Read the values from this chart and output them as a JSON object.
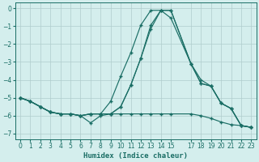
{
  "xlabel": "Humidex (Indice chaleur)",
  "bg_color": "#d4eeed",
  "grid_color": "#b0cccc",
  "line_color": "#1a6e65",
  "xlim": [
    -0.5,
    23.5
  ],
  "ylim": [
    -7.3,
    0.3
  ],
  "yticks": [
    0,
    -1,
    -2,
    -3,
    -4,
    -5,
    -6,
    -7
  ],
  "xticks": [
    0,
    1,
    2,
    3,
    4,
    5,
    6,
    7,
    8,
    9,
    10,
    11,
    12,
    13,
    14,
    15,
    17,
    18,
    19,
    20,
    21,
    22,
    23
  ],
  "lines": [
    {
      "x": [
        0,
        1,
        2,
        3,
        4,
        5,
        6,
        7,
        8,
        9,
        10,
        11,
        12,
        13,
        14,
        15,
        17,
        18,
        19,
        20,
        21,
        22,
        23
      ],
      "y": [
        -5.0,
        -5.2,
        -5.5,
        -5.8,
        -5.9,
        -5.9,
        -6.0,
        -6.4,
        -6.0,
        -5.9,
        -5.9,
        -5.9,
        -5.9,
        -5.9,
        -5.9,
        -5.9,
        -5.9,
        -6.0,
        -6.15,
        -6.35,
        -6.5,
        -6.55,
        -6.65
      ]
    },
    {
      "x": [
        0,
        1,
        2,
        3,
        4,
        5,
        6,
        7,
        8,
        9,
        10,
        11,
        12,
        13,
        14,
        15,
        17,
        18,
        19,
        20,
        21,
        22,
        23
      ],
      "y": [
        -5.0,
        -5.2,
        -5.5,
        -5.8,
        -5.9,
        -5.9,
        -6.0,
        -5.9,
        -5.9,
        -5.9,
        -5.5,
        -4.3,
        -2.8,
        -1.15,
        -0.12,
        -0.12,
        -3.1,
        -4.2,
        -4.35,
        -5.3,
        -5.6,
        -6.55,
        -6.65
      ]
    },
    {
      "x": [
        0,
        1,
        2,
        3,
        4,
        5,
        6,
        7,
        8,
        9,
        10,
        11,
        12,
        13,
        14,
        15,
        17,
        18,
        19,
        20,
        21,
        22,
        23
      ],
      "y": [
        -5.0,
        -5.2,
        -5.5,
        -5.8,
        -5.9,
        -5.9,
        -6.0,
        -5.9,
        -5.9,
        -5.2,
        -3.8,
        -2.5,
        -0.95,
        -0.12,
        -0.12,
        -0.55,
        -3.1,
        -4.0,
        -4.35,
        -5.3,
        -5.6,
        -6.55,
        -6.65
      ]
    },
    {
      "x": [
        0,
        1,
        2,
        3,
        4,
        5,
        6,
        7,
        8,
        9,
        10,
        11,
        12,
        13,
        14,
        15,
        17,
        18,
        19,
        20,
        21,
        22,
        23
      ],
      "y": [
        -5.0,
        -5.2,
        -5.5,
        -5.8,
        -5.9,
        -5.9,
        -6.0,
        -5.9,
        -5.9,
        -5.9,
        -5.5,
        -4.3,
        -2.8,
        -0.95,
        -0.12,
        -0.12,
        -3.1,
        -4.2,
        -4.35,
        -5.3,
        -5.6,
        -6.55,
        -6.65
      ]
    }
  ]
}
